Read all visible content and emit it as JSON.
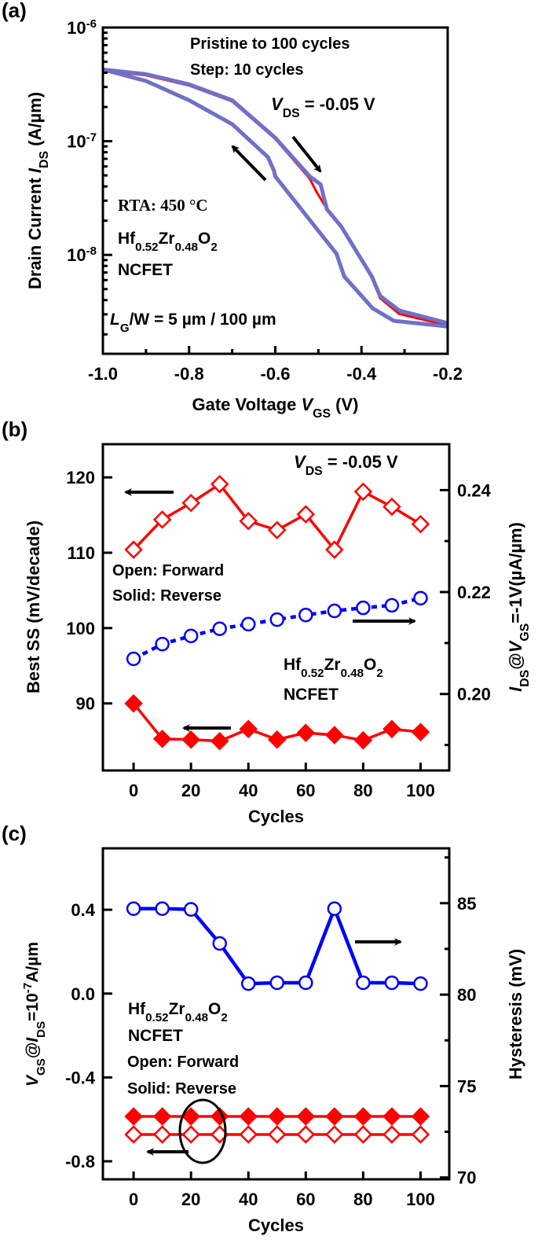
{
  "colors": {
    "red": "#ff0000",
    "blue": "#0000ff",
    "purple": "#7070c8",
    "axis": "#000000"
  },
  "chart_data": [
    {
      "panel_label": "(a)",
      "type": "line",
      "xlabel": [
        {
          "t": "Gate Voltage "
        },
        {
          "t": "V",
          "i": true
        },
        {
          "t": "GS",
          "sub": true
        },
        {
          "t": " (V)"
        }
      ],
      "ylabel": [
        {
          "t": "Drain Current "
        },
        {
          "t": "I",
          "i": true
        },
        {
          "t": "DS",
          "sub": true
        },
        {
          "t": " (A/µm)"
        }
      ],
      "xlim": [
        -1.0,
        -0.2
      ],
      "ylim_log10": [
        -8.87,
        -6.0
      ],
      "y_scale": "log",
      "x_ticks": [
        "-1.0",
        "-0.8",
        "-0.6",
        "-0.4",
        "-0.2"
      ],
      "y_ticks": [
        {
          "base": "10",
          "exp": "-6",
          "value": -6
        },
        {
          "base": "10",
          "exp": "-7",
          "value": -7
        },
        {
          "base": "10",
          "exp": "-8",
          "value": -8
        }
      ],
      "series_colors": [
        "#ff0000",
        "#e0a000",
        "#2aa02a",
        "#009999",
        "#e07000",
        "#7070c8"
      ],
      "curves": {
        "forward": {
          "x": [
            -1.0,
            -0.9,
            -0.8,
            -0.7,
            -0.6,
            -0.52,
            -0.495,
            -0.48,
            -0.447,
            -0.376,
            -0.357,
            -0.312,
            -0.2
          ],
          "log10_y": [
            -6.37,
            -6.41,
            -6.5,
            -6.64,
            -6.97,
            -7.31,
            -7.38,
            -7.6,
            -7.75,
            -8.19,
            -8.36,
            -8.49,
            -8.6
          ]
        },
        "forward_red": {
          "x": [
            -1.0,
            -0.9,
            -0.8,
            -0.7,
            -0.6,
            -0.52,
            -0.505,
            -0.486,
            -0.447,
            -0.376,
            -0.357,
            -0.312,
            -0.2
          ],
          "log10_y": [
            -6.38,
            -6.42,
            -6.51,
            -6.65,
            -6.98,
            -7.33,
            -7.44,
            -7.56,
            -7.76,
            -8.2,
            -8.38,
            -8.52,
            -8.62
          ]
        },
        "reverse": {
          "x": [
            -1.0,
            -0.9,
            -0.8,
            -0.7,
            -0.617,
            -0.603,
            -0.6,
            -0.458,
            -0.44,
            -0.374,
            -0.325,
            -0.2
          ],
          "log10_y": [
            -6.37,
            -6.47,
            -6.64,
            -6.85,
            -7.14,
            -7.26,
            -7.31,
            -7.99,
            -8.19,
            -8.47,
            -8.58,
            -8.63
          ]
        }
      },
      "annotations": {
        "title1": "Pristine to 100 cycles",
        "title2": "Step: 10 cycles",
        "vds": [
          {
            "t": "V",
            "i": true
          },
          {
            "t": "DS",
            "sub": true
          },
          {
            "t": " = -0.05 V"
          }
        ],
        "rta": "RTA: 450 °C",
        "material": [
          {
            "t": "Hf"
          },
          {
            "t": "0.52",
            "sub": true
          },
          {
            "t": "Zr"
          },
          {
            "t": "0.48",
            "sub": true
          },
          {
            "t": "O"
          },
          {
            "t": "2",
            "sub": true
          }
        ],
        "device": "NCFET",
        "geometry": [
          {
            "t": "L",
            "i": true
          },
          {
            "t": "G",
            "sub": true
          },
          {
            "t": "/W = 5 µm / 100 µm"
          }
        ]
      }
    },
    {
      "panel_label": "(b)",
      "type": "line",
      "xlabel": [
        {
          "t": "Cycles"
        }
      ],
      "ylabel": [
        {
          "t": "Best SS (mV/decade)"
        }
      ],
      "ylabel_right": [
        {
          "t": "I",
          "i": true
        },
        {
          "t": "DS",
          "sub": true
        },
        {
          "t": "@"
        },
        {
          "t": "V",
          "i": true
        },
        {
          "t": "GS",
          "sub": true
        },
        {
          "t": "=-1V(µA/µm)"
        }
      ],
      "xlim": [
        -10.7,
        110
      ],
      "ylim": [
        81.1,
        124.4
      ],
      "ylim_right": [
        0.185,
        0.249
      ],
      "x_ticks": [
        "0",
        "20",
        "40",
        "60",
        "80",
        "100"
      ],
      "y_ticks": [
        "90",
        "100",
        "110",
        "120"
      ],
      "y_ticks_right": [
        "0.20",
        "0.22",
        "0.24"
      ],
      "x": [
        0,
        10,
        20,
        30,
        40,
        50,
        60,
        70,
        80,
        90,
        100
      ],
      "series": [
        {
          "axis": "left",
          "marker": "open-diamond",
          "color": "#ff0000",
          "values": [
            110.4,
            114.4,
            116.6,
            119.1,
            114.2,
            113.0,
            115.1,
            110.4,
            118.1,
            116.1,
            113.8
          ]
        },
        {
          "axis": "left",
          "marker": "solid-diamond",
          "color": "#ff0000",
          "values": [
            90.0,
            85.3,
            85.2,
            85.0,
            86.6,
            85.2,
            86.1,
            85.8,
            85.1,
            86.6,
            86.2
          ]
        },
        {
          "axis": "right",
          "marker": "open-circle",
          "color": "#0000ff",
          "dashed": true,
          "values": [
            0.2069,
            0.2098,
            0.2114,
            0.2128,
            0.2137,
            0.2146,
            0.2155,
            0.2163,
            0.2169,
            0.2174,
            0.2188
          ]
        }
      ],
      "annotations": {
        "vds": [
          {
            "t": "V",
            "i": true
          },
          {
            "t": "DS",
            "sub": true
          },
          {
            "t": " = -0.05 V"
          }
        ],
        "open": "Open: Forward",
        "solid": "Solid: Reverse",
        "material": [
          {
            "t": "Hf"
          },
          {
            "t": "0.52",
            "sub": true
          },
          {
            "t": "Zr"
          },
          {
            "t": "0.48",
            "sub": true
          },
          {
            "t": "O"
          },
          {
            "t": "2",
            "sub": true
          }
        ],
        "device": "NCFET"
      }
    },
    {
      "panel_label": "(c)",
      "type": "line",
      "xlabel": [
        {
          "t": "Cycles"
        }
      ],
      "ylabel": [
        {
          "t": "V",
          "i": true
        },
        {
          "t": "GS",
          "sub": true
        },
        {
          "t": "@"
        },
        {
          "t": "I",
          "i": true
        },
        {
          "t": "DS",
          "sub": true
        },
        {
          "t": "=10"
        },
        {
          "t": "-7",
          "sup": true
        },
        {
          "t": "A/µm"
        }
      ],
      "ylabel_right": [
        {
          "t": "Hysteresis (mV)"
        }
      ],
      "xlim": [
        -10.7,
        110
      ],
      "ylim": [
        -0.886,
        0.693
      ],
      "ylim_right": [
        69.9,
        88.0
      ],
      "x_ticks": [
        "0",
        "20",
        "40",
        "60",
        "80",
        "100"
      ],
      "y_ticks": [
        "0.4",
        "0.0",
        "-0.4",
        "-0.8"
      ],
      "y_ticks_right": [
        "85",
        "80",
        "75",
        "70"
      ],
      "x": [
        0,
        10,
        20,
        30,
        40,
        50,
        60,
        70,
        80,
        90,
        100
      ],
      "series": [
        {
          "axis": "right",
          "marker": "open-circle",
          "color": "#0000ff",
          "values": [
            84.7,
            84.7,
            84.66,
            82.8,
            80.6,
            80.65,
            80.65,
            84.7,
            80.65,
            80.65,
            80.6
          ]
        },
        {
          "axis": "left",
          "marker": "solid-diamond",
          "color": "#ff0000",
          "values": [
            -0.586,
            -0.586,
            -0.586,
            -0.586,
            -0.586,
            -0.586,
            -0.586,
            -0.586,
            -0.586,
            -0.586,
            -0.586
          ]
        },
        {
          "axis": "left",
          "marker": "open-diamond",
          "color": "#ff0000",
          "values": [
            -0.672,
            -0.672,
            -0.672,
            -0.672,
            -0.672,
            -0.672,
            -0.672,
            -0.672,
            -0.672,
            -0.672,
            -0.672
          ]
        }
      ],
      "annotations": {
        "material": [
          {
            "t": "Hf"
          },
          {
            "t": "0.52",
            "sub": true
          },
          {
            "t": "Zr"
          },
          {
            "t": "0.48",
            "sub": true
          },
          {
            "t": "O"
          },
          {
            "t": "2",
            "sub": true
          }
        ],
        "device": "NCFET",
        "open": "Open: Forward",
        "solid": "Solid: Reverse"
      }
    }
  ]
}
